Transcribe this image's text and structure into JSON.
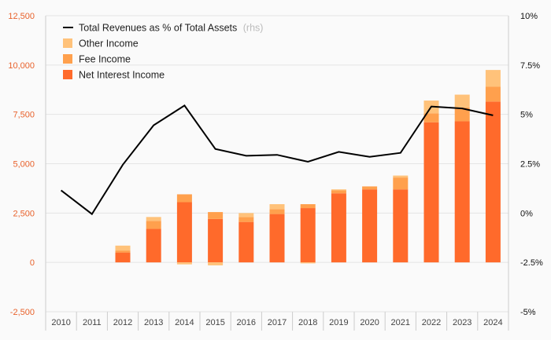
{
  "chart_data": {
    "type": "bar",
    "stacked": true,
    "categories": [
      "2010",
      "2011",
      "2012",
      "2013",
      "2014",
      "2015",
      "2016",
      "2017",
      "2018",
      "2019",
      "2020",
      "2021",
      "2022",
      "2023",
      "2024"
    ],
    "series": [
      {
        "name": "Net Interest Income",
        "color": "#ff6a2b",
        "values": [
          0,
          0,
          500,
          1700,
          3050,
          2200,
          2050,
          2450,
          2750,
          3500,
          3700,
          3700,
          7100,
          7150,
          8150
        ]
      },
      {
        "name": "Fee Income",
        "color": "#ffa04d",
        "values": [
          0,
          0,
          100,
          400,
          400,
          350,
          250,
          250,
          200,
          150,
          150,
          600,
          450,
          700,
          750
        ]
      },
      {
        "name": "Other Income",
        "color": "#ffc27a",
        "values": [
          0,
          0,
          250,
          200,
          0,
          0,
          200,
          250,
          0,
          50,
          0,
          100,
          650,
          650,
          850
        ]
      },
      {
        "name": "Negative component",
        "color": "#ffc27a",
        "legend": false,
        "values": [
          0,
          0,
          0,
          0,
          -100,
          -150,
          0,
          0,
          -50,
          0,
          0,
          0,
          0,
          0,
          0
        ]
      }
    ],
    "line": {
      "name": "Total Revenues as % of Total Assets",
      "suffix": "(rhs)",
      "color": "#000000",
      "values": [
        1.15,
        -0.05,
        2.45,
        4.45,
        5.45,
        3.25,
        2.9,
        2.95,
        2.6,
        3.1,
        2.85,
        3.05,
        5.4,
        5.3,
        4.95
      ]
    },
    "left_axis": {
      "min": -2500,
      "max": 12500,
      "ticks": [
        -2500,
        0,
        2500,
        5000,
        7500,
        10000,
        12500
      ],
      "tick_labels": [
        "-2,500",
        "0",
        "2,500",
        "5,000",
        "7,500",
        "10,000",
        "12,500"
      ]
    },
    "right_axis": {
      "min": -5,
      "max": 10,
      "ticks": [
        -5,
        -2.5,
        0,
        2.5,
        5,
        7.5,
        10
      ],
      "tick_labels": [
        "-5%",
        "-2.5%",
        "0%",
        "2.5%",
        "5%",
        "7.5%",
        "10%"
      ]
    },
    "colors": {
      "left_tick": "#e8622c",
      "grid": "#e4e4e4",
      "axis": "#cccccc"
    }
  }
}
